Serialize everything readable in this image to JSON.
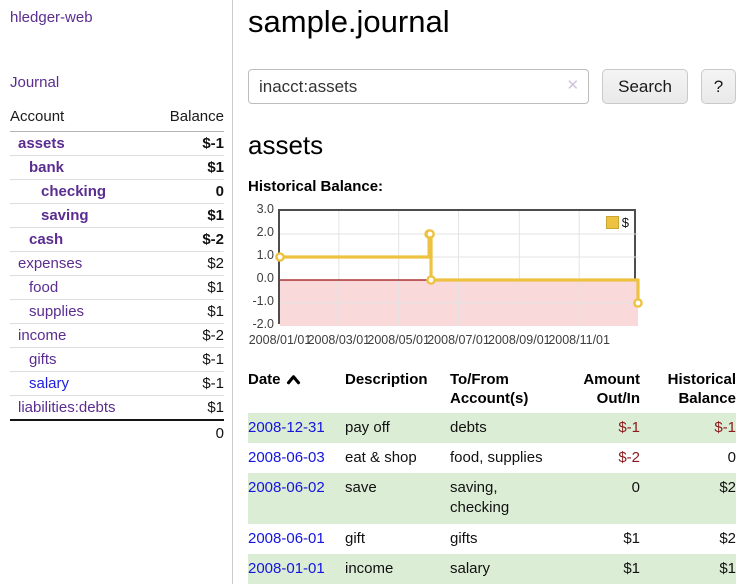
{
  "app": {
    "brand": "hledger-web",
    "nav_journal": "Journal"
  },
  "sidebar": {
    "table_headers": {
      "account": "Account",
      "balance": "Balance"
    },
    "accounts": [
      {
        "name": "assets",
        "balance": "$-1",
        "level": 1,
        "bold": true,
        "unvisited": false
      },
      {
        "name": "bank",
        "balance": "$1",
        "level": 2,
        "bold": true,
        "unvisited": false
      },
      {
        "name": "checking",
        "balance": "0",
        "level": 3,
        "bold": true,
        "unvisited": false
      },
      {
        "name": "saving",
        "balance": "$1",
        "level": 3,
        "bold": true,
        "unvisited": false
      },
      {
        "name": "cash",
        "balance": "$-2",
        "level": 2,
        "bold": true,
        "unvisited": false
      },
      {
        "name": "expenses",
        "balance": "$2",
        "level": 1,
        "bold": false,
        "unvisited": false
      },
      {
        "name": "food",
        "balance": "$1",
        "level": 2,
        "bold": false,
        "unvisited": false
      },
      {
        "name": "supplies",
        "balance": "$1",
        "level": 2,
        "bold": false,
        "unvisited": false
      },
      {
        "name": "income",
        "balance": "$-2",
        "level": 1,
        "bold": false,
        "unvisited": false
      },
      {
        "name": "gifts",
        "balance": "$-1",
        "level": 2,
        "bold": false,
        "unvisited": false
      },
      {
        "name": "salary",
        "balance": "$-1",
        "level": 2,
        "bold": false,
        "unvisited": true
      },
      {
        "name": "liabilities:debts",
        "balance": "$1",
        "level": 1,
        "bold": false,
        "unvisited": false
      }
    ],
    "total": "0"
  },
  "header": {
    "title": "sample.journal"
  },
  "search": {
    "value": "inacct:assets",
    "clear_icon": "✕",
    "button": "Search",
    "help_button": "?"
  },
  "content": {
    "heading": "assets",
    "chart_label": "Historical Balance:"
  },
  "chart_data": {
    "type": "line",
    "title": "Historical Balance",
    "steps": true,
    "series": [
      {
        "name": "$",
        "color": "#edc240",
        "points": [
          [
            "2008-01-01",
            1
          ],
          [
            "2008-06-01",
            2
          ],
          [
            "2008-06-02",
            2
          ],
          [
            "2008-06-03",
            0
          ],
          [
            "2008-12-31",
            -1
          ]
        ]
      }
    ],
    "x_range": [
      "2008-01-01",
      "2008-12-31"
    ],
    "x_ticks": [
      "2008/01/01",
      "2008/03/01",
      "2008/05/01",
      "2008/07/01",
      "2008/09/01",
      "2008/11/01"
    ],
    "y_ticks": [
      "3.0",
      "2.0",
      "1.0",
      "0.0",
      "-1.0",
      "-2.0"
    ],
    "ylim": [
      -2,
      3
    ],
    "grid": true,
    "gridline_color": "#e3e3e3",
    "negative_region_color": "#f9d9d9",
    "zero_line_color": "#9c0d0d",
    "legend": {
      "label": "$",
      "position": "top-right"
    }
  },
  "register": {
    "columns": [
      "Date",
      "Description",
      "To/From Account(s)",
      "Amount Out/In",
      "Historical Balance"
    ],
    "rows": [
      {
        "date": "2008-12-31",
        "description": "pay off",
        "accounts": "debts",
        "amount": "$-1",
        "balance": "$-1"
      },
      {
        "date": "2008-06-03",
        "description": "eat & shop",
        "accounts": "food, supplies",
        "amount": "$-2",
        "balance": "0"
      },
      {
        "date": "2008-06-02",
        "description": "save",
        "accounts": "saving, checking",
        "amount": "0",
        "balance": "$2"
      },
      {
        "date": "2008-06-01",
        "description": "gift",
        "accounts": "gifts",
        "amount": "$1",
        "balance": "$2"
      },
      {
        "date": "2008-01-01",
        "description": "income",
        "accounts": "salary",
        "amount": "$1",
        "balance": "$1"
      }
    ]
  }
}
